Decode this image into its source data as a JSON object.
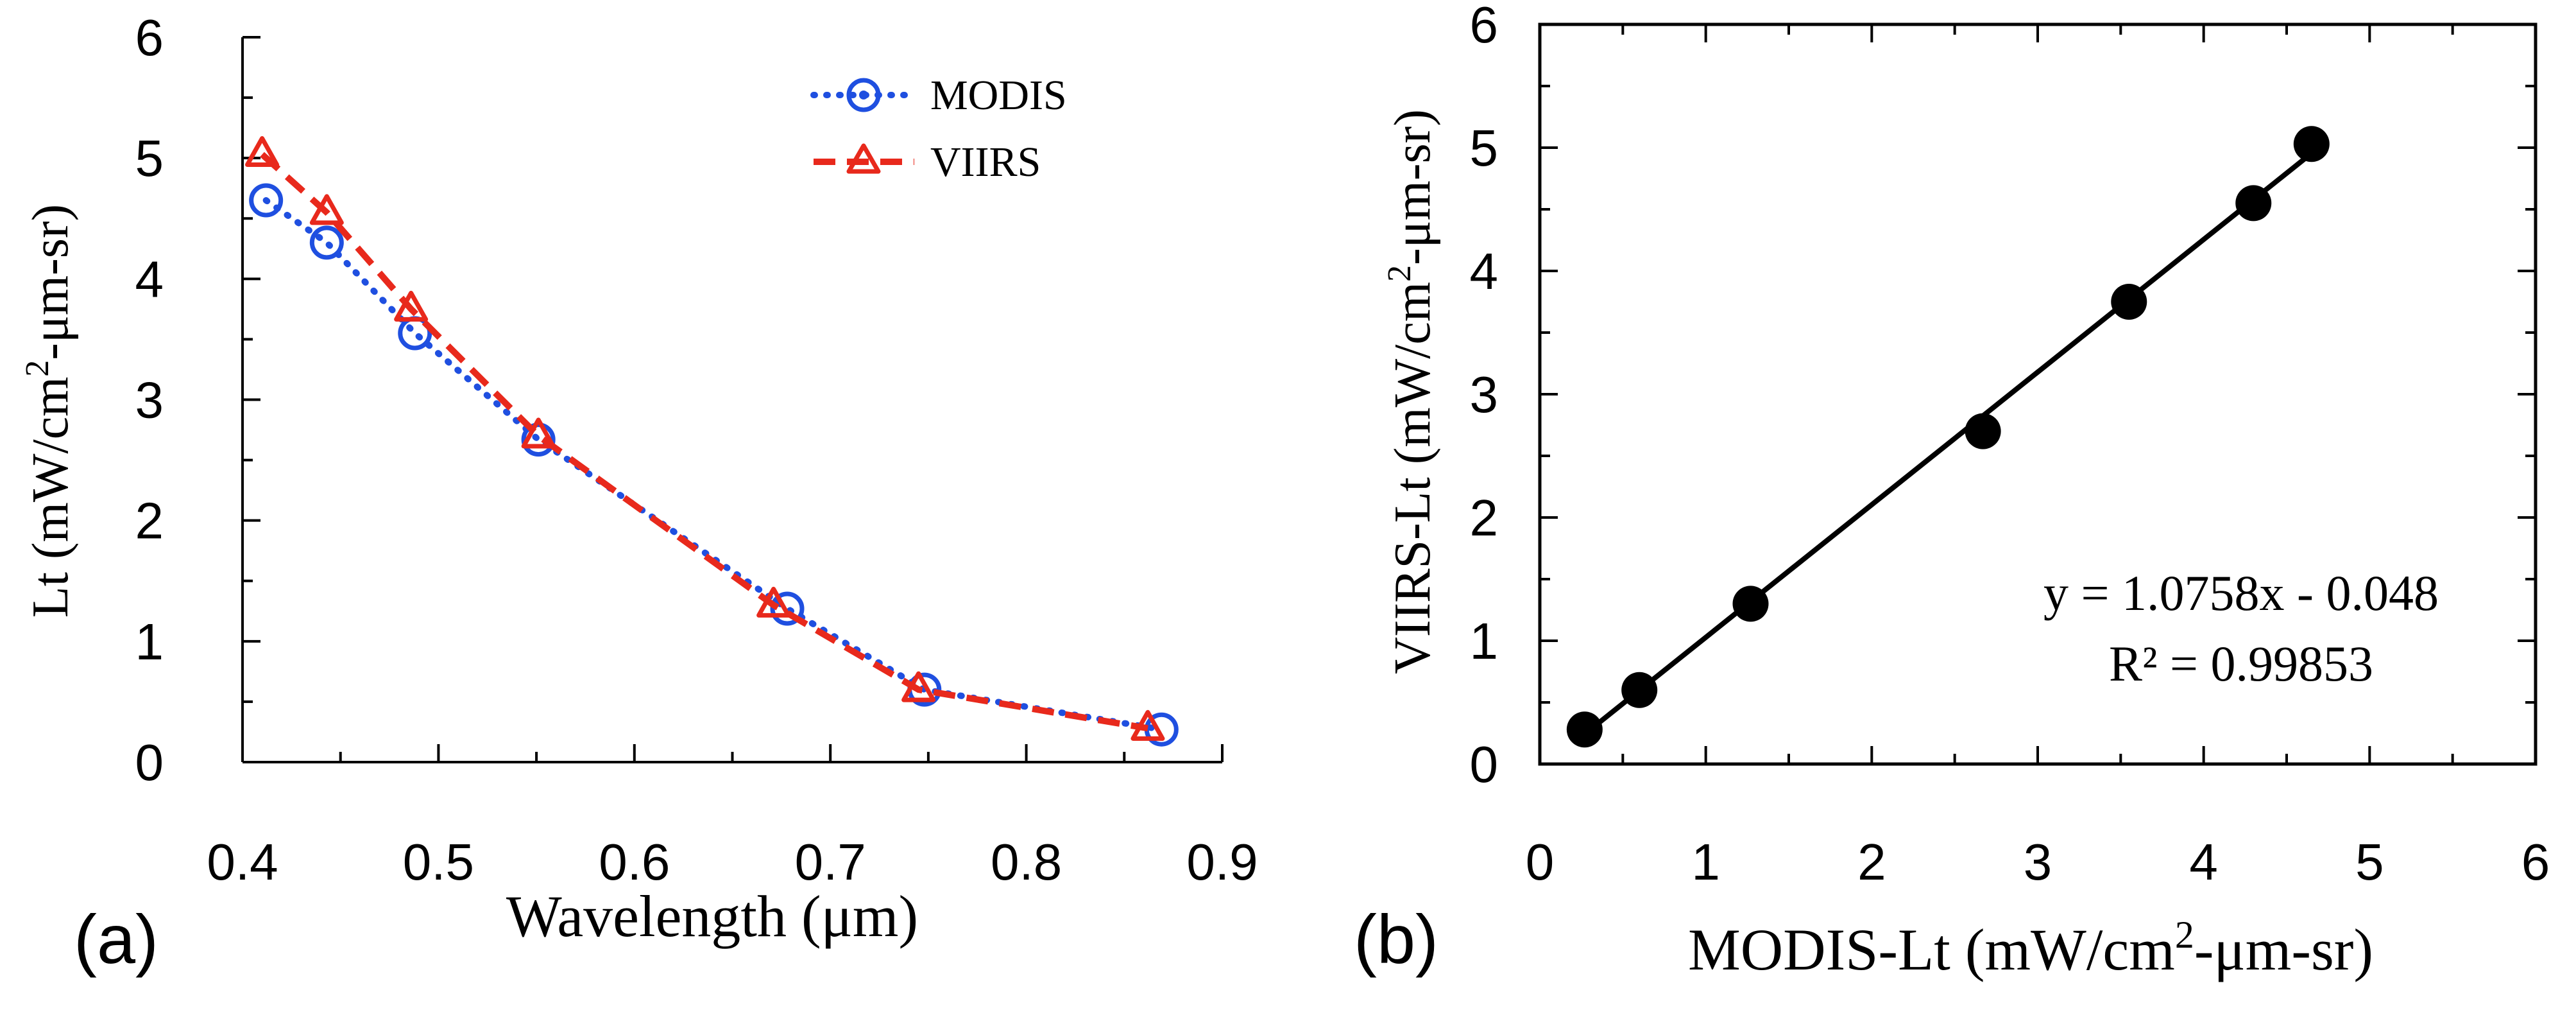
{
  "chart_data": [
    {
      "type": "line",
      "panel_label": "(a)",
      "xlabel": "Wavelength (μm)",
      "ylabel_prefix": "Lt (mW/cm",
      "ylabel_sup": "2",
      "ylabel_suffix": "-μm-sr)",
      "xlim": [
        0.4,
        0.9
      ],
      "ylim": [
        0,
        6
      ],
      "xticks": [
        "0.4",
        "0.5",
        "0.6",
        "0.7",
        "0.8",
        "0.9"
      ],
      "yticks": [
        "0",
        "1",
        "2",
        "3",
        "4",
        "5",
        "6"
      ],
      "legend_position": "top-right",
      "series": [
        {
          "name": "MODIS",
          "color": "#1f4fe0",
          "marker": "circle",
          "style": "dotted",
          "x": [
            0.412,
            0.443,
            0.488,
            0.551,
            0.678,
            0.748,
            0.869
          ],
          "y": [
            4.65,
            4.3,
            3.55,
            2.67,
            1.27,
            0.6,
            0.27
          ]
        },
        {
          "name": "VIIRS",
          "color": "#e8291c",
          "marker": "triangle",
          "style": "dashed",
          "x": [
            0.41,
            0.443,
            0.486,
            0.551,
            0.671,
            0.745,
            0.862
          ],
          "y": [
            5.03,
            4.55,
            3.75,
            2.7,
            1.3,
            0.6,
            0.28
          ]
        }
      ]
    },
    {
      "type": "scatter",
      "panel_label": "(b)",
      "xlabel_prefix": "MODIS-Lt (mW/cm",
      "xlabel_sup": "2",
      "xlabel_suffix": "-μm-sr)",
      "ylabel_prefix": "VIIRS-Lt (mW/cm",
      "ylabel_sup": "2",
      "ylabel_suffix": "-μm-sr)",
      "xlim": [
        0,
        6
      ],
      "ylim": [
        0,
        6
      ],
      "xticks": [
        "0",
        "1",
        "2",
        "3",
        "4",
        "5",
        "6"
      ],
      "yticks": [
        "0",
        "1",
        "2",
        "3",
        "4",
        "5",
        "6"
      ],
      "points": {
        "x": [
          0.27,
          0.6,
          1.27,
          2.67,
          3.55,
          4.3,
          4.65
        ],
        "y": [
          0.28,
          0.6,
          1.3,
          2.7,
          3.75,
          4.55,
          5.03
        ]
      },
      "fit": {
        "slope": 1.0758,
        "intercept": -0.048,
        "x_range": [
          0.27,
          4.65
        ]
      },
      "equation": "y = 1.0758x - 0.048",
      "r_squared": "R² = 0.99853",
      "point_color": "#000000"
    }
  ]
}
